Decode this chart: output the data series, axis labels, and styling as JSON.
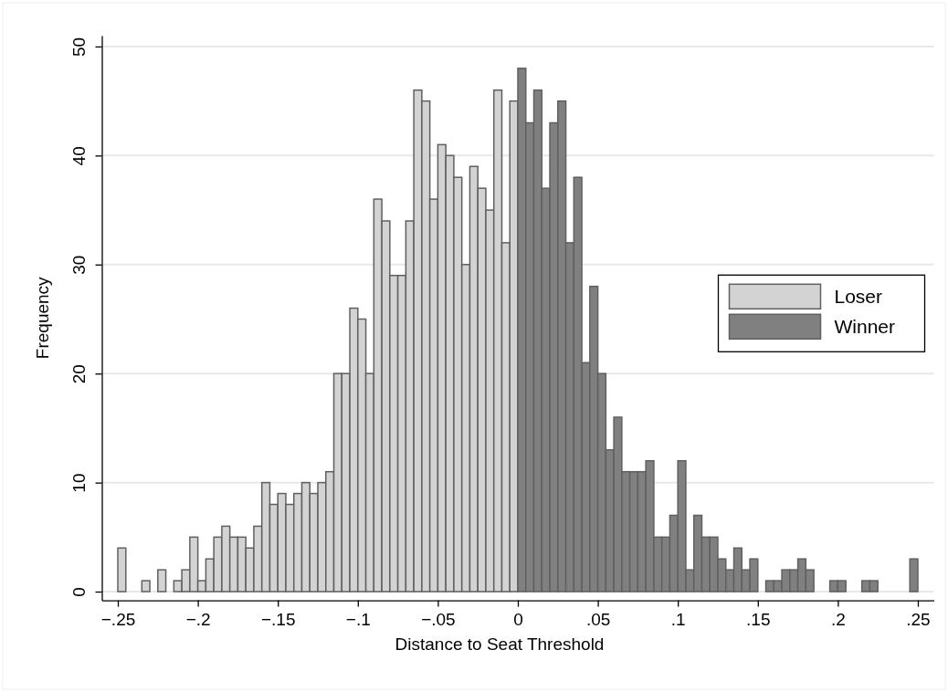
{
  "chart_data": {
    "type": "histogram",
    "xlabel": "Distance to Seat Threshold",
    "ylabel": "Frequency",
    "bins": [
      -0.25,
      -0.245,
      -0.24,
      -0.235,
      -0.23,
      -0.225,
      -0.22,
      -0.215,
      -0.21,
      -0.205,
      -0.2,
      -0.195,
      -0.19,
      -0.185,
      -0.18,
      -0.175,
      -0.17,
      -0.165,
      -0.16,
      -0.155,
      -0.15,
      -0.145,
      -0.14,
      -0.135,
      -0.13,
      -0.125,
      -0.12,
      -0.115,
      -0.11,
      -0.105,
      -0.1,
      -0.095,
      -0.09,
      -0.085,
      -0.08,
      -0.075,
      -0.07,
      -0.065,
      -0.06,
      -0.055,
      -0.05,
      -0.045,
      -0.04,
      -0.035,
      -0.03,
      -0.025,
      -0.02,
      -0.015,
      -0.01,
      -0.005,
      0,
      0.005,
      0.01,
      0.015,
      0.02,
      0.025,
      0.03,
      0.035,
      0.04,
      0.045,
      0.05,
      0.055,
      0.06,
      0.065,
      0.07,
      0.075,
      0.08,
      0.085,
      0.09,
      0.095,
      0.1,
      0.105,
      0.11,
      0.115,
      0.12,
      0.125,
      0.13,
      0.135,
      0.14,
      0.145,
      0.15,
      0.155,
      0.16,
      0.165,
      0.17,
      0.175,
      0.18,
      0.185,
      0.19,
      0.195,
      0.2,
      0.205,
      0.21,
      0.215,
      0.22,
      0.225,
      0.23,
      0.235,
      0.24,
      0.245,
      0.25
    ],
    "series": [
      {
        "name": "Loser",
        "color": "#d3d3d3",
        "values": [
          4,
          0,
          0,
          1,
          0,
          2,
          0,
          1,
          2,
          5,
          1,
          3,
          5,
          6,
          5,
          5,
          4,
          6,
          10,
          8,
          9,
          8,
          9,
          10,
          9,
          10,
          11,
          20,
          20,
          26,
          25,
          20,
          36,
          34,
          29,
          29,
          34,
          46,
          45,
          36,
          41,
          40,
          38,
          30,
          39,
          37,
          35,
          46,
          32,
          45,
          null,
          null,
          null,
          null,
          null,
          null,
          null,
          null,
          null,
          null,
          null,
          null,
          null,
          null,
          null,
          null,
          null,
          null,
          null,
          null,
          null,
          null,
          null,
          null,
          null,
          null,
          null,
          null,
          null,
          null,
          null,
          null,
          null,
          null,
          null,
          null,
          null,
          null,
          null,
          null,
          null,
          null,
          null,
          null,
          null,
          null,
          null,
          null,
          null,
          null
        ]
      },
      {
        "name": "Winner",
        "color": "#808080",
        "values": [
          null,
          null,
          null,
          null,
          null,
          null,
          null,
          null,
          null,
          null,
          null,
          null,
          null,
          null,
          null,
          null,
          null,
          null,
          null,
          null,
          null,
          null,
          null,
          null,
          null,
          null,
          null,
          null,
          null,
          null,
          null,
          null,
          null,
          null,
          null,
          null,
          null,
          null,
          null,
          null,
          null,
          null,
          null,
          null,
          null,
          null,
          null,
          null,
          null,
          null,
          48,
          43,
          46,
          37,
          43,
          45,
          32,
          38,
          21,
          28,
          20,
          13,
          16,
          11,
          11,
          11,
          12,
          5,
          5,
          7,
          12,
          2,
          7,
          5,
          5,
          3,
          2,
          4,
          2,
          3,
          0,
          1,
          1,
          2,
          2,
          3,
          2,
          0,
          0,
          1,
          1,
          0,
          0,
          1,
          1,
          0,
          0,
          0,
          0,
          3
        ]
      }
    ],
    "xlim": [
      -0.26,
      0.26
    ],
    "xticks": [
      {
        "value": -0.25,
        "label": "−.25"
      },
      {
        "value": -0.2,
        "label": "−.2"
      },
      {
        "value": -0.15,
        "label": "−.15"
      },
      {
        "value": -0.1,
        "label": "−.1"
      },
      {
        "value": -0.05,
        "label": "−.05"
      },
      0,
      {
        "value": 0.05,
        "label": ".05"
      },
      {
        "value": 0.1,
        "label": ".1"
      },
      {
        "value": 0.15,
        "label": ".15"
      },
      {
        "value": 0.2,
        "label": ".2"
      },
      {
        "value": 0.25,
        "label": ".25"
      }
    ],
    "ylim": [
      -0.8,
      51
    ],
    "yticks": [
      0,
      10,
      20,
      30,
      40,
      50
    ],
    "grid": "y",
    "legend": "right"
  }
}
